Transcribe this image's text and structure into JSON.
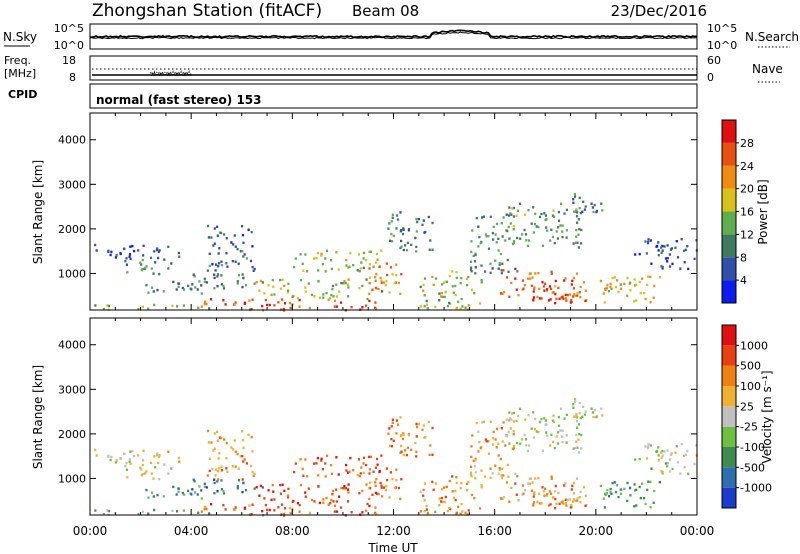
{
  "header": {
    "station": "Zhongshan Station (fitACF)",
    "beam": "Beam 08",
    "date": "23/Dec/2016"
  },
  "strip1": {
    "left_label": "N.Sky",
    "left_ticks": [
      "10^5",
      "10^0"
    ],
    "right_ticks": [
      "10^5",
      "10^0"
    ],
    "right_label": "N.Search",
    "right_legend_style": "dotted"
  },
  "strip2": {
    "left_label_1": "Freq.",
    "left_label_2": "[MHz]",
    "left_ticks": [
      "18",
      "8"
    ],
    "right_ticks": [
      "60",
      "0"
    ],
    "right_label": "Nave",
    "right_legend_style": "dotted"
  },
  "cpid": {
    "label": "CPID",
    "text": "normal (fast stereo) 153"
  },
  "chart_data": [
    {
      "type": "heatmap",
      "name": "power-panel",
      "quantity": "Power",
      "ylabel": "Slant Range [km]",
      "xlabel": "Time UT",
      "x_ticks": [
        "00:00",
        "04:00",
        "08:00",
        "12:00",
        "16:00",
        "20:00",
        "00:00"
      ],
      "x_range_hours": [
        0,
        24
      ],
      "y_ticks": [
        1000,
        2000,
        3000,
        4000
      ],
      "ylim": [
        180,
        4600
      ],
      "colorbar": {
        "label": "Power [dB]",
        "ticks": [
          "4",
          "8",
          "12",
          "16",
          "20",
          "24",
          "28"
        ],
        "colors": [
          "#0a1cf0",
          "#2f4fa8",
          "#3e7a5e",
          "#5fae4e",
          "#d8c21a",
          "#f08a10",
          "#e85010",
          "#e01010"
        ]
      },
      "scatter_regions": [
        {
          "t0": 0.0,
          "t1": 3.6,
          "r0": 1330,
          "r1": 1700,
          "v": 0.15
        },
        {
          "t0": 1.2,
          "t1": 3.3,
          "r0": 1000,
          "r1": 1330,
          "v": 0.3
        },
        {
          "t0": 2.0,
          "t1": 4.6,
          "r0": 560,
          "r1": 880,
          "v": 0.35
        },
        {
          "t0": 0.0,
          "t1": 4.8,
          "r0": 200,
          "r1": 320,
          "v": 0.45
        },
        {
          "t0": 4.0,
          "t1": 6.8,
          "r0": 650,
          "r1": 1000,
          "v": 0.3
        },
        {
          "t0": 4.6,
          "t1": 6.5,
          "r0": 1000,
          "r1": 2100,
          "v": 0.25
        },
        {
          "t0": 4.3,
          "t1": 11.8,
          "r0": 190,
          "r1": 450,
          "v": 0.85
        },
        {
          "t0": 6.5,
          "t1": 11.6,
          "r0": 450,
          "r1": 900,
          "v": 0.5
        },
        {
          "t0": 8.0,
          "t1": 11.5,
          "r0": 1050,
          "r1": 1550,
          "v": 0.5
        },
        {
          "t0": 11.0,
          "t1": 12.4,
          "r0": 500,
          "r1": 1300,
          "v": 0.7
        },
        {
          "t0": 11.5,
          "t1": 13.5,
          "r0": 1500,
          "r1": 2400,
          "v": 0.3
        },
        {
          "t0": 13.0,
          "t1": 15.5,
          "r0": 200,
          "r1": 1100,
          "v": 0.5
        },
        {
          "t0": 15.0,
          "t1": 16.8,
          "r0": 1000,
          "r1": 2400,
          "v": 0.35
        },
        {
          "t0": 16.5,
          "t1": 19.5,
          "r0": 1600,
          "r1": 2600,
          "v": 0.4
        },
        {
          "t0": 16.2,
          "t1": 19.7,
          "r0": 400,
          "r1": 1100,
          "v": 0.75
        },
        {
          "t0": 17.3,
          "t1": 19.1,
          "r0": 350,
          "r1": 900,
          "v": 0.9
        },
        {
          "t0": 19.0,
          "t1": 20.5,
          "r0": 2300,
          "r1": 2850,
          "v": 0.3
        },
        {
          "t0": 20.0,
          "t1": 22.5,
          "r0": 350,
          "r1": 1000,
          "v": 0.6
        },
        {
          "t0": 21.5,
          "t1": 24.0,
          "r0": 1100,
          "r1": 1800,
          "v": 0.15
        }
      ]
    },
    {
      "type": "heatmap",
      "name": "velocity-panel",
      "quantity": "Velocity",
      "ylabel": "Slant Range [km]",
      "xlabel": "Time UT",
      "x_ticks": [
        "00:00",
        "04:00",
        "08:00",
        "12:00",
        "16:00",
        "20:00",
        "00:00"
      ],
      "x_range_hours": [
        0,
        24
      ],
      "y_ticks": [
        1000,
        2000,
        3000,
        4000
      ],
      "ylim": [
        180,
        4600
      ],
      "colorbar": {
        "label": "Velocity [m s⁻¹]",
        "ticks": [
          "1000",
          "500",
          "100",
          "25",
          "-25",
          "-100",
          "-500",
          "-1000"
        ],
        "colors": [
          "#1a3ad0",
          "#2f6fb0",
          "#3e8a50",
          "#6cc040",
          "#c0c0c0",
          "#f0b030",
          "#f08010",
          "#e84010",
          "#e01010"
        ]
      },
      "scatter_regions": [
        {
          "t0": 0.0,
          "t1": 3.6,
          "r0": 1330,
          "r1": 1700,
          "v": 0.55
        },
        {
          "t0": 1.2,
          "t1": 3.3,
          "r0": 1000,
          "r1": 1330,
          "v": 0.5
        },
        {
          "t0": 2.0,
          "t1": 4.6,
          "r0": 560,
          "r1": 880,
          "v": 0.3
        },
        {
          "t0": 0.0,
          "t1": 4.8,
          "r0": 200,
          "r1": 320,
          "v": 0.35
        },
        {
          "t0": 4.0,
          "t1": 6.8,
          "r0": 650,
          "r1": 1000,
          "v": 0.2
        },
        {
          "t0": 4.6,
          "t1": 6.5,
          "r0": 1000,
          "r1": 2100,
          "v": 0.7
        },
        {
          "t0": 4.3,
          "t1": 11.8,
          "r0": 190,
          "r1": 450,
          "v": 0.8
        },
        {
          "t0": 6.5,
          "t1": 11.6,
          "r0": 450,
          "r1": 900,
          "v": 0.85
        },
        {
          "t0": 8.0,
          "t1": 11.5,
          "r0": 1050,
          "r1": 1550,
          "v": 0.8
        },
        {
          "t0": 11.0,
          "t1": 12.4,
          "r0": 500,
          "r1": 1300,
          "v": 0.75
        },
        {
          "t0": 11.5,
          "t1": 13.5,
          "r0": 1500,
          "r1": 2400,
          "v": 0.72
        },
        {
          "t0": 13.0,
          "t1": 15.5,
          "r0": 200,
          "r1": 1100,
          "v": 0.7
        },
        {
          "t0": 15.0,
          "t1": 16.8,
          "r0": 1000,
          "r1": 2400,
          "v": 0.65
        },
        {
          "t0": 16.5,
          "t1": 19.5,
          "r0": 1600,
          "r1": 2600,
          "v": 0.5
        },
        {
          "t0": 16.2,
          "t1": 19.7,
          "r0": 400,
          "r1": 1100,
          "v": 0.65
        },
        {
          "t0": 17.3,
          "t1": 19.1,
          "r0": 350,
          "r1": 900,
          "v": 0.7
        },
        {
          "t0": 19.0,
          "t1": 20.5,
          "r0": 2300,
          "r1": 2850,
          "v": 0.5
        },
        {
          "t0": 20.0,
          "t1": 22.5,
          "r0": 350,
          "r1": 1000,
          "v": 0.3
        },
        {
          "t0": 21.5,
          "t1": 24.0,
          "r0": 1100,
          "r1": 1800,
          "v": 0.45
        }
      ]
    }
  ]
}
